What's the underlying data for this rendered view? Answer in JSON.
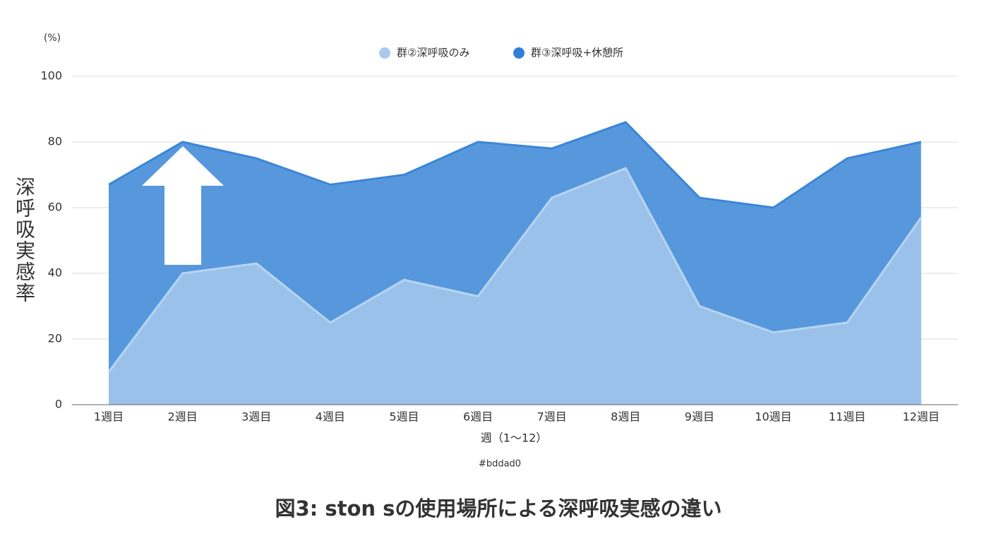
{
  "chart_data": {
    "type": "area",
    "caption": "図3: ston sの使用場所による深呼吸実感の違い",
    "unit_label": "(%)",
    "y_label": "深呼吸実感率",
    "x_label": "週（1〜12）",
    "note": "#bddad0",
    "categories": [
      "1週目",
      "2週目",
      "3週目",
      "4週目",
      "5週目",
      "6週目",
      "7週目",
      "8週目",
      "9週目",
      "10週目",
      "11週目",
      "12週目"
    ],
    "series": [
      {
        "name": "群②深呼吸のみ",
        "color": "#a9caee",
        "values": [
          10,
          40,
          43,
          25,
          38,
          33,
          63,
          72,
          30,
          22,
          25,
          57
        ]
      },
      {
        "name": "群③深呼吸+休憩所",
        "color": "#2f7fd8",
        "values": [
          67,
          80,
          75,
          67,
          70,
          80,
          78,
          86,
          63,
          60,
          75,
          80
        ]
      }
    ],
    "ylim": [
      0,
      100
    ],
    "yticks": [
      0,
      20,
      40,
      60,
      80,
      100
    ],
    "grid": true
  }
}
